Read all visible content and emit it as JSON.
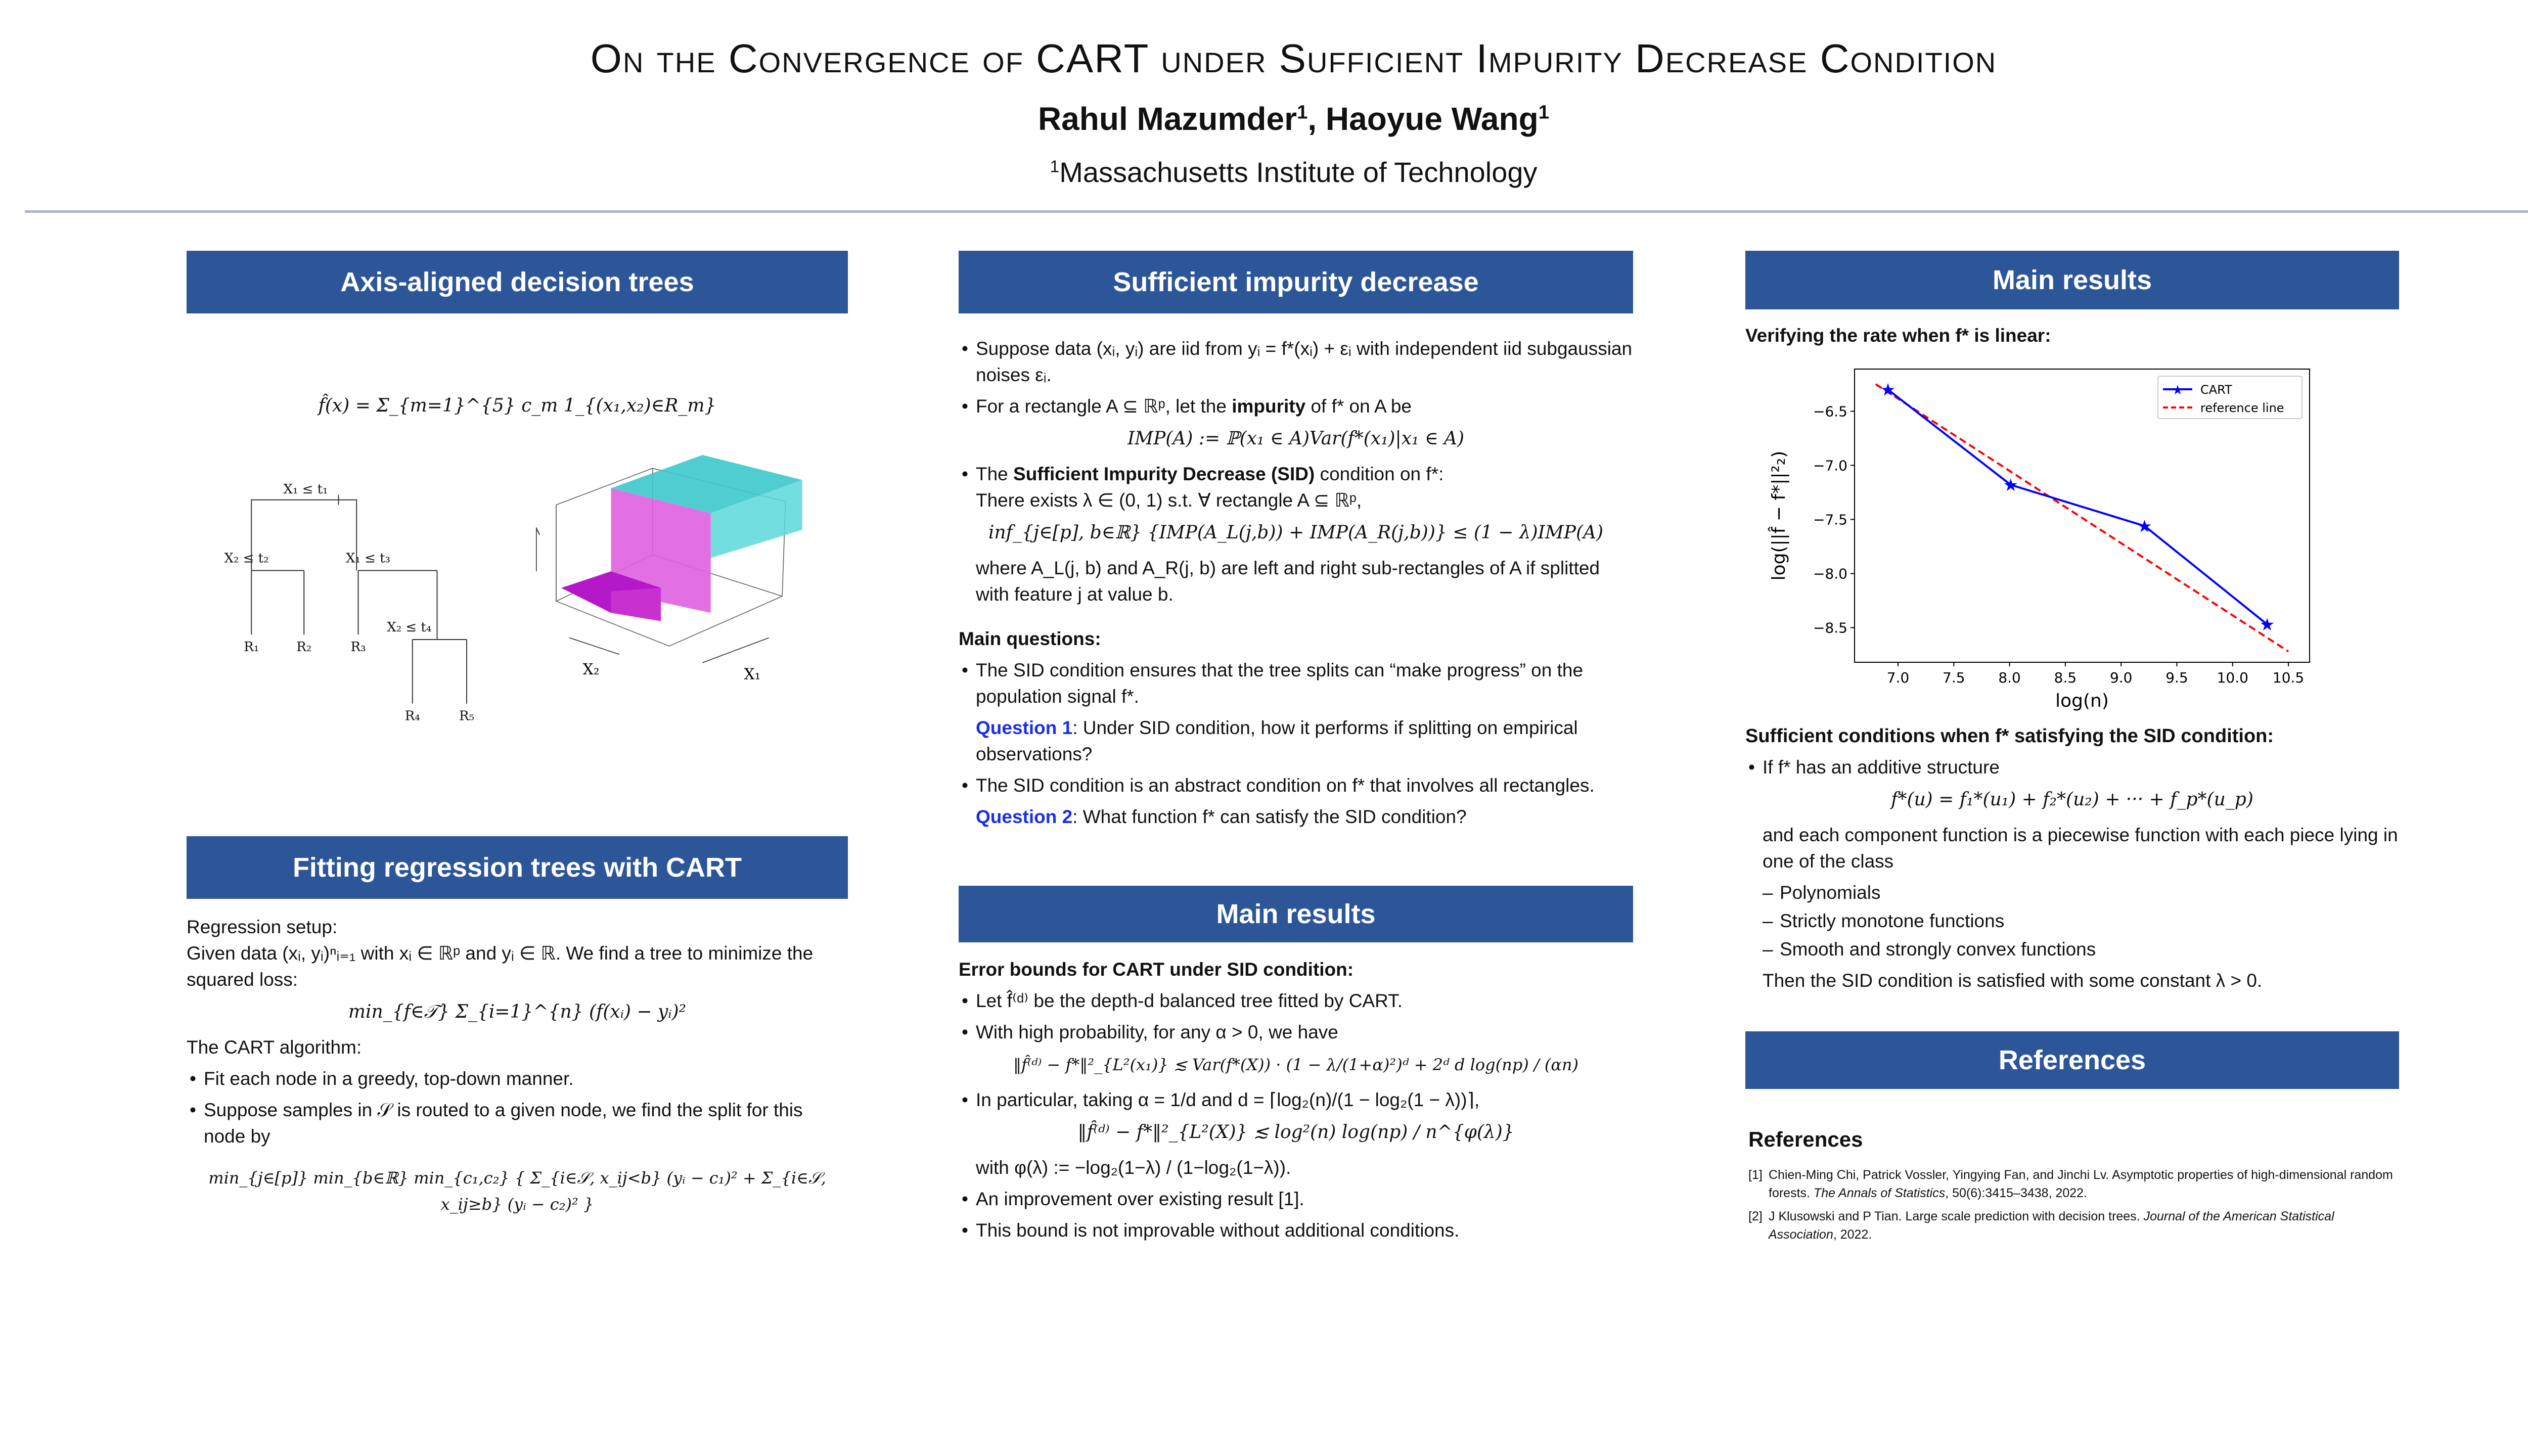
{
  "header": {
    "title": "On the Convergence of CART under Sufficient Impurity Decrease Condition",
    "author1": "Rahul Mazumder",
    "author1_sup": "1",
    "author_sep": ", ",
    "author2": "Haoyue Wang",
    "author2_sup": "1",
    "affil_sup": "1",
    "affiliation": "Massachusetts Institute of Technology"
  },
  "colors": {
    "header_box": "#2c5697",
    "rule": "#a9b4cc",
    "question": "#1a2ee8"
  },
  "left": {
    "s1_title": "Axis-aligned decision trees",
    "s1_formula": "f̂(x) = Σ_{m=1}^{5} c_m 1_{(x₁,x₂)∈R_m}",
    "tree": {
      "n1": "X₁ ≤ t₁",
      "n2": "X₂ ≤ t₂",
      "n3": "X₁ ≤ t₃",
      "n4": "X₂ ≤ t₄",
      "r1": "R₁",
      "r2": "R₂",
      "r3": "R₃",
      "r4": "R₄",
      "r5": "R₅"
    },
    "plot3d": {
      "xlabel": "X₁",
      "ylabel": "X₂"
    },
    "s2_title": "Fitting regression trees with CART",
    "setup_label": "Regression setup:",
    "setup_text": "Given data (xᵢ, yᵢ)ⁿᵢ₌₁ with xᵢ ∈ ℝᵖ and yᵢ ∈ ℝ. We find a tree to minimize the squared loss:",
    "loss_formula": "min_{f∈𝒯} Σ_{i=1}^{n} (f(xᵢ) − yᵢ)²",
    "algo_label": "The CART algorithm:",
    "bullets": [
      "Fit each node in a greedy, top-down manner.",
      "Suppose samples in 𝒮 is routed to a given node, we find the split for this node by"
    ],
    "split_formula": "min_{j∈[p]} min_{b∈ℝ} min_{c₁,c₂} { Σ_{i∈𝒮, x_ij<b} (yᵢ − c₁)² + Σ_{i∈𝒮, x_ij≥b} (yᵢ − c₂)² }"
  },
  "middle": {
    "s1_title": "Sufficient impurity decrease",
    "b1": "Suppose data (xᵢ, yᵢ) are iid from yᵢ = f*(xᵢ) + εᵢ with independent iid subgaussian noises εᵢ.",
    "b2_pre": "For a rectangle A ⊆ ℝᵖ, let the ",
    "b2_bold": "impurity",
    "b2_post": " of f* on A be",
    "imp_formula": "IMP(A) := ℙ(x₁ ∈ A)Var(f*(x₁)|x₁ ∈ A)",
    "b3_pre": "The ",
    "b3_bold": "Sufficient Impurity Decrease (SID)",
    "b3_post": " condition on f*:",
    "b3_line2": "There exists λ ∈ (0, 1) s.t. ∀ rectangle A ⊆ ℝᵖ,",
    "sid_formula": "inf_{j∈[p], b∈ℝ} {IMP(A_L(j,b)) + IMP(A_R(j,b))} ≤ (1 − λ)IMP(A)",
    "b3_after": "where A_L(j, b) and A_R(j, b) are left and right sub-rectangles of A if splitted with feature j at value b.",
    "mq_label": "Main questions",
    "mq_b1": "The SID condition ensures that the tree splits can “make progress” on the population signal f*.",
    "q1_label": "Question 1",
    "q1_text": ": Under SID condition, how it performs if splitting on empirical observations?",
    "mq_b2": "The SID condition is an abstract condition on f* that involves all rectangles.",
    "q2_label": "Question 2",
    "q2_text": ": What function f* can satisfy the SID condition?",
    "s2_title": "Main results",
    "eb_label": "Error bounds for CART under SID condition",
    "r_b1": "Let f̂⁽ᵈ⁾ be the depth-d balanced tree fitted by CART.",
    "r_b2": "With high probability, for any α > 0, we have",
    "bound1": "‖f̂⁽ᵈ⁾ − f*‖²_{L²(x₁)} ≲ Var(f*(X)) · (1 − λ/(1+α)²)ᵈ + 2ᵈ d log(np) / (αn)",
    "r_b3": "In particular, taking α = 1/d and d = ⌈log₂(n)/(1 − log₂(1 − λ))⌉,",
    "bound2": "‖f̂⁽ᵈ⁾ − f*‖²_{L²(X)} ≲ log²(n) log(np) / n^{φ(λ)}",
    "phi_def": "with φ(λ) := −log₂(1−λ) / (1−log₂(1−λ)).",
    "r_b4": "An improvement over existing result [1].",
    "r_b5": "This bound is not improvable without additional conditions."
  },
  "right": {
    "s1_title": "Main results",
    "verify_label": "Verifying the rate when f* is linear",
    "suff_label": "Sufficient conditions when f* satisfying the SID condition:",
    "s_b1": "If f* has an additive structure",
    "additive_formula": "f*(u) = f₁*(u₁) + f₂*(u₂) + ··· + f_p*(u_p)",
    "s_text": "and each component function is a piecewise function with each piece lying in one of the class",
    "classes": [
      "Polynomials",
      "Strictly monotone functions",
      "Smooth and strongly convex functions"
    ],
    "conclusion": "Then the SID condition is satisfied with some constant λ > 0.",
    "s2_title": "References",
    "refs_heading": "References",
    "refs": [
      {
        "n": "[1]",
        "text": "Chien-Ming Chi, Patrick Vossler, Yingying Fan, and Jinchi Lv.  Asymptotic properties of high-dimensional random forests. ",
        "venue": "The Annals of Statistics",
        "tail": ", 50(6):3415–3438, 2022."
      },
      {
        "n": "[2]",
        "text": "J Klusowski and P Tian.  Large scale prediction with decision trees.  ",
        "venue": "Journal of the American Statistical Association",
        "tail": ", 2022."
      }
    ]
  },
  "chart_data": {
    "type": "line",
    "xlabel": "log(n)",
    "ylabel": "log(||f̂ − f*||²₂)",
    "xlim": [
      6.61,
      10.69
    ],
    "ylim": [
      -8.82,
      -6.11
    ],
    "xticks": [
      7.0,
      7.5,
      8.0,
      8.5,
      9.0,
      9.5,
      10.0,
      10.5
    ],
    "xtick_labels": [
      "7.0",
      "7.5",
      "8.0",
      "8.5",
      "9.0",
      "9.5",
      "10.0",
      "10.5"
    ],
    "yticks": [
      -6.5,
      -7.0,
      -7.5,
      -8.0,
      -8.5
    ],
    "ytick_labels": [
      "−6.5",
      "−7.0",
      "−7.5",
      "−8.0",
      "−8.5"
    ],
    "legend_position": "top-right",
    "series": [
      {
        "name": "CART",
        "color": "#0000ff",
        "style": "solid-star",
        "x": [
          6.91,
          8.01,
          9.21,
          10.31
        ],
        "y": [
          -6.3,
          -7.18,
          -7.56,
          -8.47
        ]
      },
      {
        "name": "reference line",
        "color": "#ff0000",
        "style": "dashed",
        "x": [
          6.8,
          10.5
        ],
        "y": [
          -6.25,
          -8.72
        ]
      }
    ]
  }
}
